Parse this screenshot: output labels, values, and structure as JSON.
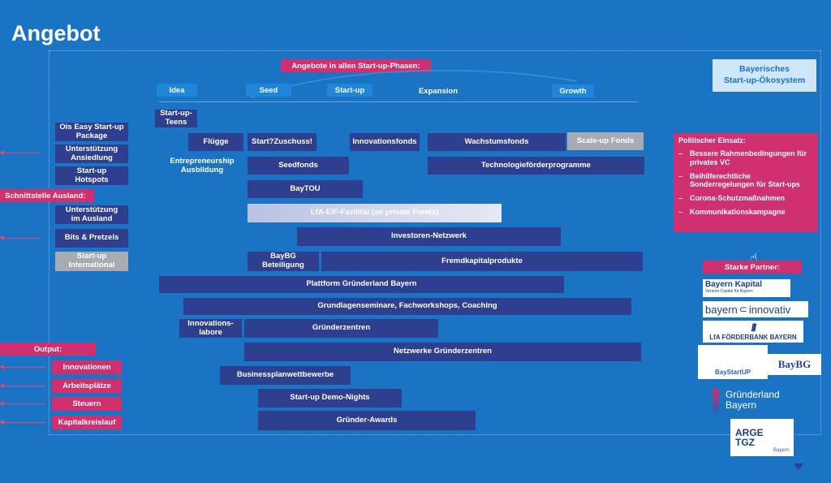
{
  "title": "Angebot",
  "phases_header": "Angebote in allen Start-up-Phasen:",
  "phases": [
    "Idea",
    "Seed",
    "Start-up",
    "Expansion",
    "Growth"
  ],
  "ecosystem_label": "Bayerisches\nStart-up-Ökosystem",
  "left_column": {
    "items": [
      "Ois Easy Start-up\nPackage",
      "Unterstützung\nAnsiedlung",
      "Start-up\nHotspots"
    ],
    "interface_label": "Schnittstelle Ausland:",
    "foreign_items": [
      "Unterstützung\nim Ausland",
      "Bits & Pretzels",
      "Start-up\nInternational"
    ]
  },
  "programs": {
    "startup_teens": "Start-up-\nTeens",
    "fluegge": "Flügge",
    "entrepreneurship": "Entrepreneurship\nAusbildung",
    "start_zuschuss": "Start?Zuschuss!",
    "innovationsfonds": "Innovationsfonds",
    "wachstumsfonds": "Wachstumsfonds",
    "scaleup_fonds": "Scale-up Fonds",
    "seedfonds": "Seedfonds",
    "technologie": "Technologieförderprogramme",
    "baytou": "BayTOU",
    "lfa_eif": "LfA-EIF-Fazilität (an private Fonds)",
    "investoren": "Investoren-Netzwerk",
    "baybg": "BayBG\nBeteiligung",
    "fremdkapital": "Fremdkapitalprodukte",
    "plattform": "Plattform Gründerland Bayern",
    "grundlagen": "Grundlagenseminare, Fachworkshops, Coaching",
    "innovationslabore": "Innovations-\nlabore",
    "gruenderzentren": "Gründerzentren",
    "netzwerke": "Netzwerke Gründerzentren",
    "businessplan": "Businessplanwettbewerbe",
    "demo_nights": "Start-up Demo-Nights",
    "awards": "Gründer-Awards"
  },
  "output": {
    "label": "Output:",
    "items": [
      "Innovationen",
      "Arbeitsplätze",
      "Steuern",
      "Kapitalkreislauf"
    ]
  },
  "politik": {
    "heading": "Politischer Einsatz:",
    "items": [
      "Bessere Rahmenbedingungen für privates VC",
      "Beihilferechtliche Sonderregelungen für Start-ups",
      "Corona-Schutzmaßnahmen",
      "Kommunikationskampagne"
    ]
  },
  "partners": {
    "heading": "Starke Partner:",
    "bayern_kapital": "Bayern Kapital",
    "bayern_kapital_sub": "Venture Capital für Bayern",
    "bayern_innovativ_a": "bayern",
    "bayern_innovativ_b": "innovativ",
    "lfa": "LfA FÖRDERBANK BAYERN",
    "baystartup": "BayStartUP",
    "baybg": "BayBG",
    "gruenderland_a": "Gründerland",
    "gruenderland_b": "Bayern",
    "arge_a": "ARGE",
    "arge_b": "TGZ",
    "arge_c": "Bayern"
  },
  "colors": {
    "background": "#1b73c4",
    "box": "#2e3f8f",
    "accent_pink": "#d1306f",
    "grey": "#a7abb3"
  }
}
